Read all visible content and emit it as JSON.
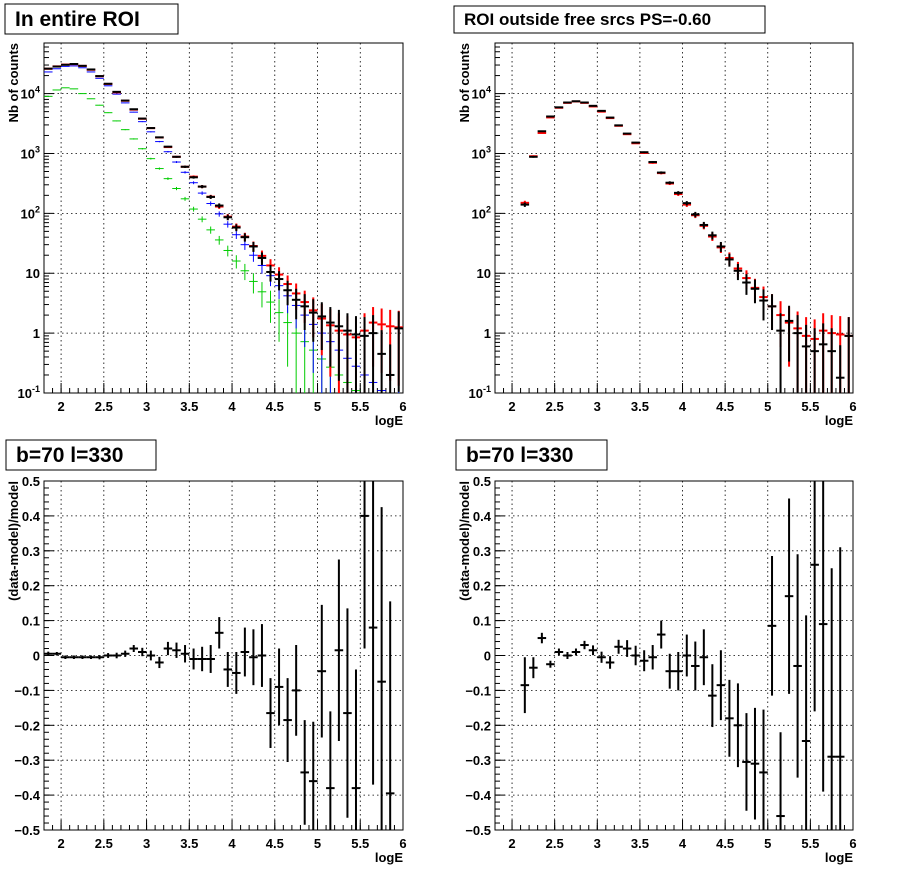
{
  "colors": {
    "black": "#000000",
    "red": "#ff0000",
    "blue": "#0000ff",
    "green": "#00cc00"
  },
  "chart_data": [
    {
      "type": "scatter",
      "title": "In entire ROI",
      "xlabel": "logE",
      "ylabel": "Nb of counts",
      "xlim": [
        1.8,
        6.0
      ],
      "ylim": [
        0.1,
        70000
      ],
      "yscale": "log",
      "grid": true,
      "x_ticks": [
        "2",
        "2.5",
        "3",
        "3.5",
        "4",
        "4.5",
        "5",
        "5.5",
        "6"
      ],
      "y_ticks": [
        {
          "value": 0.1,
          "base": "10",
          "exp": "-1"
        },
        {
          "value": 1,
          "label": "1"
        },
        {
          "value": 10,
          "label": "10"
        },
        {
          "value": 100,
          "base": "10",
          "exp": "2"
        },
        {
          "value": 1000,
          "base": "10",
          "exp": "3"
        },
        {
          "value": 10000,
          "base": "10",
          "exp": "4"
        }
      ],
      "series": [
        {
          "color": "green",
          "x": [
            1.85,
            1.95,
            2.05,
            2.15,
            2.25,
            2.35,
            2.45,
            2.55,
            2.65,
            2.75,
            2.85,
            2.95,
            3.05,
            3.15,
            3.25,
            3.35,
            3.45,
            3.55,
            3.65,
            3.75,
            3.85,
            3.95,
            4.05,
            4.15,
            4.25,
            4.35,
            4.45,
            4.55,
            4.65,
            4.75,
            4.85,
            4.95,
            5.05,
            5.15,
            5.25,
            5.35,
            5.45,
            5.55,
            5.65,
            5.75,
            5.85,
            5.95
          ],
          "y": [
            9000,
            11500,
            12500,
            12000,
            10000,
            8200,
            6400,
            4800,
            3500,
            2500,
            1750,
            1200,
            820,
            560,
            380,
            260,
            175,
            118,
            80,
            53,
            36,
            24,
            16,
            11,
            7.3,
            4.9,
            3.3,
            2.2,
            1.5,
            1.0,
            0.72,
            0.52,
            0.37,
            0.27,
            0.2,
            0.15,
            0.11,
            0.09,
            0.08,
            0.07,
            0.06,
            0.06
          ],
          "xerr": 0.05
        },
        {
          "color": "blue",
          "x": [
            1.85,
            1.95,
            2.05,
            2.15,
            2.25,
            2.35,
            2.45,
            2.55,
            2.65,
            2.75,
            2.85,
            2.95,
            3.05,
            3.15,
            3.25,
            3.35,
            3.45,
            3.55,
            3.65,
            3.75,
            3.85,
            3.95,
            4.05,
            4.15,
            4.25,
            4.35,
            4.45,
            4.55,
            4.65,
            4.75,
            4.85,
            4.95,
            5.05,
            5.15,
            5.25,
            5.35,
            5.45,
            5.55,
            5.65,
            5.75,
            5.85,
            5.95
          ],
          "y": [
            23000,
            26000,
            28500,
            29000,
            27000,
            23000,
            18000,
            13500,
            9800,
            7000,
            4900,
            3400,
            2300,
            1580,
            1070,
            720,
            485,
            325,
            218,
            146,
            98,
            66,
            44,
            30,
            20,
            13.5,
            9.1,
            6.2,
            4.2,
            2.9,
            2.0,
            1.4,
            1.0,
            0.72,
            0.52,
            0.38,
            0.28,
            0.2,
            0.15,
            0.11,
            0.09,
            0.08
          ],
          "xerr": 0.05
        },
        {
          "color": "red",
          "x": [
            1.85,
            1.95,
            2.05,
            2.15,
            2.25,
            2.35,
            2.45,
            2.55,
            2.65,
            2.75,
            2.85,
            2.95,
            3.05,
            3.15,
            3.25,
            3.35,
            3.45,
            3.55,
            3.65,
            3.75,
            3.85,
            3.95,
            4.05,
            4.15,
            4.25,
            4.35,
            4.45,
            4.55,
            4.65,
            4.75,
            4.85,
            4.95,
            5.05,
            5.15,
            5.25,
            5.35,
            5.45,
            5.55,
            5.65,
            5.75,
            5.85,
            5.95
          ],
          "y": [
            26000,
            28500,
            30500,
            31000,
            29000,
            25000,
            19500,
            14500,
            10500,
            7600,
            5400,
            3800,
            2650,
            1850,
            1280,
            880,
            600,
            410,
            280,
            190,
            130,
            88,
            60,
            41,
            28.5,
            19.5,
            13.5,
            9.5,
            6.6,
            4.6,
            3.3,
            2.4,
            1.75,
            1.35,
            1.1,
            0.95,
            0.85,
            1.1,
            1.5,
            1.4,
            1.3,
            1.25
          ],
          "xerr": 0.05
        },
        {
          "color": "black",
          "x": [
            1.85,
            1.95,
            2.05,
            2.15,
            2.25,
            2.35,
            2.45,
            2.55,
            2.65,
            2.75,
            2.85,
            2.95,
            3.05,
            3.15,
            3.25,
            3.35,
            3.45,
            3.55,
            3.65,
            3.75,
            3.85,
            3.95,
            4.05,
            4.15,
            4.25,
            4.35,
            4.45,
            4.55,
            4.65,
            4.75,
            4.85,
            4.95,
            5.05,
            5.15,
            5.25,
            5.35,
            5.45,
            5.55,
            5.65,
            5.75,
            5.85,
            5.95
          ],
          "y": [
            26100,
            28300,
            30300,
            31200,
            29100,
            25300,
            19600,
            14600,
            10700,
            7650,
            5480,
            3830,
            2660,
            1860,
            1300,
            880,
            600,
            400,
            280,
            188,
            135,
            86,
            58,
            40,
            28,
            18,
            10.5,
            8.0,
            5.2,
            3.6,
            2.8,
            2.2,
            1.9,
            1.5,
            1.3,
            1.1,
            0.95,
            0.9,
            1.0,
            0.45,
            0.2,
            1.2
          ],
          "xerr": 0.05
        }
      ]
    },
    {
      "type": "scatter",
      "title": "ROI outside free srcs PS=-0.60",
      "xlabel": "logE",
      "ylabel": "Nb of counts",
      "xlim": [
        1.8,
        6.0
      ],
      "ylim": [
        0.1,
        70000
      ],
      "yscale": "log",
      "grid": true,
      "x_ticks": [
        "2",
        "2.5",
        "3",
        "3.5",
        "4",
        "4.5",
        "5",
        "5.5",
        "6"
      ],
      "y_ticks": [
        {
          "value": 0.1,
          "base": "10",
          "exp": "-1"
        },
        {
          "value": 1,
          "label": "1"
        },
        {
          "value": 10,
          "label": "10"
        },
        {
          "value": 100,
          "base": "10",
          "exp": "2"
        },
        {
          "value": 1000,
          "base": "10",
          "exp": "3"
        },
        {
          "value": 10000,
          "base": "10",
          "exp": "4"
        }
      ],
      "series": [
        {
          "color": "red",
          "x": [
            2.15,
            2.25,
            2.35,
            2.45,
            2.55,
            2.65,
            2.75,
            2.85,
            2.95,
            3.05,
            3.15,
            3.25,
            3.35,
            3.45,
            3.55,
            3.65,
            3.75,
            3.85,
            3.95,
            4.05,
            4.15,
            4.25,
            4.35,
            4.45,
            4.55,
            4.65,
            4.75,
            4.85,
            4.95,
            5.05,
            5.15,
            5.25,
            5.35,
            5.45,
            5.55,
            5.65,
            5.75,
            5.85,
            5.95
          ],
          "y": [
            150,
            900,
            2200,
            4000,
            5800,
            7000,
            7400,
            7000,
            6100,
            5000,
            3900,
            2900,
            2100,
            1480,
            1020,
            700,
            470,
            315,
            210,
            140,
            93,
            62,
            41,
            27,
            18,
            12,
            8.3,
            5.7,
            4.0,
            2.8,
            2.0,
            1.5,
            1.2,
            0.9,
            0.8,
            1.1,
            1.0,
            0.95,
            0.9
          ],
          "xerr": 0.05
        },
        {
          "color": "black",
          "x": [
            2.15,
            2.25,
            2.35,
            2.45,
            2.55,
            2.65,
            2.75,
            2.85,
            2.95,
            3.05,
            3.15,
            3.25,
            3.35,
            3.45,
            3.55,
            3.65,
            3.75,
            3.85,
            3.95,
            4.05,
            4.15,
            4.25,
            4.35,
            4.45,
            4.55,
            4.65,
            4.75,
            4.85,
            4.95,
            5.05,
            5.15,
            5.25,
            5.35,
            5.45,
            5.55,
            5.65,
            5.75,
            5.85,
            5.95
          ],
          "y": [
            140,
            880,
            2350,
            4150,
            5900,
            7100,
            7450,
            7100,
            6250,
            5150,
            3980,
            2950,
            2150,
            1520,
            1050,
            720,
            480,
            325,
            220,
            148,
            96,
            64,
            43,
            28,
            17,
            11,
            7.0,
            5.5,
            3.5,
            2.8,
            1.1,
            1.6,
            1.0,
            0.6,
            0.5,
            0.65,
            0.5,
            0.18,
            0.9
          ],
          "xerr": 0.05
        }
      ]
    },
    {
      "type": "scatter",
      "title": "b=70 l=330",
      "xlabel": "logE",
      "ylabel": "(data-model)/model",
      "xlim": [
        1.8,
        6.0
      ],
      "ylim": [
        -0.5,
        0.5
      ],
      "grid": true,
      "x_ticks": [
        "2",
        "2.5",
        "3",
        "3.5",
        "4",
        "4.5",
        "5",
        "5.5",
        "6"
      ],
      "y_ticks": [
        "-0.5",
        "-0.4",
        "-0.3",
        "-0.2",
        "-0.1",
        "0",
        "0.1",
        "0.2",
        "0.3",
        "0.4",
        "0.5"
      ],
      "series": [
        {
          "color": "black",
          "x": [
            1.85,
            1.95,
            2.05,
            2.15,
            2.25,
            2.35,
            2.45,
            2.55,
            2.65,
            2.75,
            2.85,
            2.95,
            3.05,
            3.15,
            3.25,
            3.35,
            3.45,
            3.55,
            3.65,
            3.75,
            3.85,
            3.95,
            4.05,
            4.15,
            4.25,
            4.35,
            4.45,
            4.55,
            4.65,
            4.75,
            4.85,
            4.95,
            5.05,
            5.15,
            5.25,
            5.35,
            5.45,
            5.55,
            5.65,
            5.75,
            5.85
          ],
          "y": [
            0.005,
            0.005,
            -0.005,
            -0.005,
            -0.005,
            -0.005,
            -0.005,
            0.0,
            0.0,
            0.005,
            0.02,
            0.01,
            0.0,
            -0.02,
            0.02,
            0.015,
            0.005,
            -0.01,
            -0.01,
            -0.01,
            0.065,
            -0.04,
            -0.05,
            0.01,
            -0.005,
            0.0,
            -0.165,
            -0.09,
            -0.185,
            -0.1,
            -0.335,
            -0.36,
            -0.045,
            -0.38,
            0.015,
            -0.165,
            -0.38,
            0.4,
            0.08,
            -0.075,
            -0.395
          ],
          "yerr": [
            0.006,
            0.005,
            0.005,
            0.005,
            0.005,
            0.005,
            0.006,
            0.007,
            0.008,
            0.009,
            0.01,
            0.012,
            0.014,
            0.016,
            0.019,
            0.022,
            0.025,
            0.03,
            0.035,
            0.04,
            0.045,
            0.05,
            0.06,
            0.07,
            0.08,
            0.09,
            0.1,
            0.11,
            0.12,
            0.13,
            0.15,
            0.17,
            0.19,
            0.22,
            0.26,
            0.3,
            0.34,
            0.38,
            0.45,
            0.5,
            0.55
          ],
          "xerr": 0.05
        }
      ]
    },
    {
      "type": "scatter",
      "title": "b=70 l=330",
      "xlabel": "logE",
      "ylabel": "(data-model)/model",
      "xlim": [
        1.8,
        6.0
      ],
      "ylim": [
        -0.5,
        0.5
      ],
      "grid": true,
      "x_ticks": [
        "2",
        "2.5",
        "3",
        "3.5",
        "4",
        "4.5",
        "5",
        "5.5",
        "6"
      ],
      "y_ticks": [
        "-0.5",
        "-0.4",
        "-0.3",
        "-0.2",
        "-0.1",
        "0",
        "0.1",
        "0.2",
        "0.3",
        "0.4",
        "0.5"
      ],
      "series": [
        {
          "color": "black",
          "x": [
            2.15,
            2.25,
            2.35,
            2.45,
            2.55,
            2.65,
            2.75,
            2.85,
            2.95,
            3.05,
            3.15,
            3.25,
            3.35,
            3.45,
            3.55,
            3.65,
            3.75,
            3.85,
            3.95,
            4.05,
            4.15,
            4.25,
            4.35,
            4.45,
            4.55,
            4.65,
            4.75,
            4.85,
            4.95,
            5.05,
            5.15,
            5.25,
            5.35,
            5.45,
            5.55,
            5.65,
            5.75,
            5.85
          ],
          "y": [
            -0.085,
            -0.035,
            0.05,
            -0.025,
            0.01,
            0.0,
            0.01,
            0.03,
            0.015,
            -0.005,
            -0.02,
            0.025,
            0.02,
            0.0,
            -0.015,
            -0.005,
            0.06,
            -0.045,
            -0.045,
            0.0,
            -0.03,
            -0.005,
            -0.115,
            -0.085,
            -0.18,
            -0.2,
            -0.305,
            -0.31,
            -0.335,
            0.085,
            -0.46,
            0.17,
            -0.03,
            -0.245,
            0.26,
            0.09,
            -0.29,
            -0.29
          ],
          "yerr": [
            0.08,
            0.03,
            0.015,
            0.01,
            0.01,
            0.01,
            0.01,
            0.012,
            0.014,
            0.016,
            0.018,
            0.02,
            0.024,
            0.028,
            0.03,
            0.035,
            0.04,
            0.05,
            0.055,
            0.06,
            0.07,
            0.08,
            0.09,
            0.1,
            0.11,
            0.12,
            0.14,
            0.16,
            0.18,
            0.2,
            0.24,
            0.28,
            0.32,
            0.36,
            0.42,
            0.48,
            0.54,
            0.6
          ],
          "xerr": 0.05
        }
      ]
    }
  ]
}
